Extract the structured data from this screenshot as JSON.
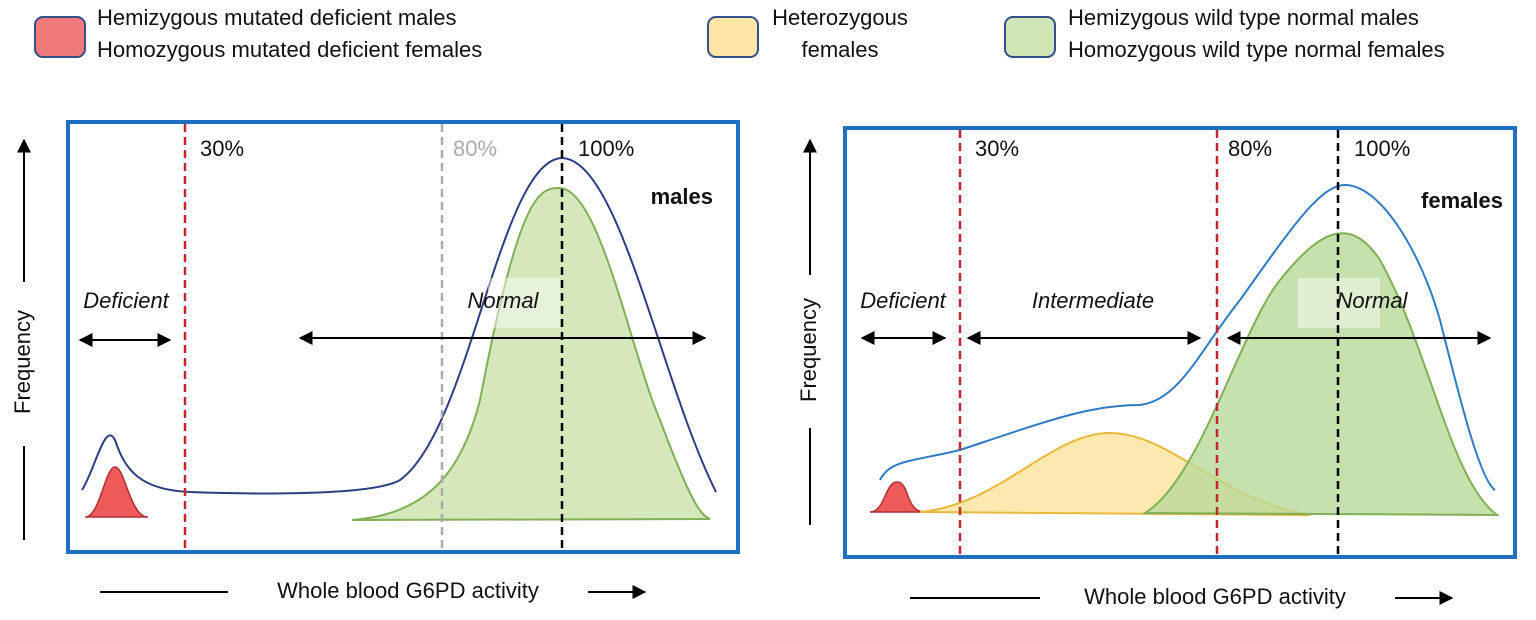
{
  "legend": [
    {
      "lines": [
        "Hemizygous mutated deficient males",
        "Homozygous mutated deficient females"
      ]
    },
    {
      "lines": [
        "Heterozygous",
        "females"
      ]
    },
    {
      "lines": [
        "Hemizygous wild type normal males",
        "Homozygous wild type normal females"
      ]
    }
  ],
  "panels": [
    {
      "label": "males",
      "y_axis": "Frequency",
      "x_axis": "Whole blood G6PD activity",
      "thresholds": [
        "30%",
        "80%",
        "100%"
      ],
      "regions": [
        "Deficient",
        "Normal"
      ]
    },
    {
      "label": "females",
      "y_axis": "Frequency",
      "x_axis": "Whole blood G6PD activity",
      "thresholds": [
        "30%",
        "80%",
        "100%"
      ],
      "regions": [
        "Deficient",
        "Intermediate",
        "Normal"
      ]
    }
  ]
}
